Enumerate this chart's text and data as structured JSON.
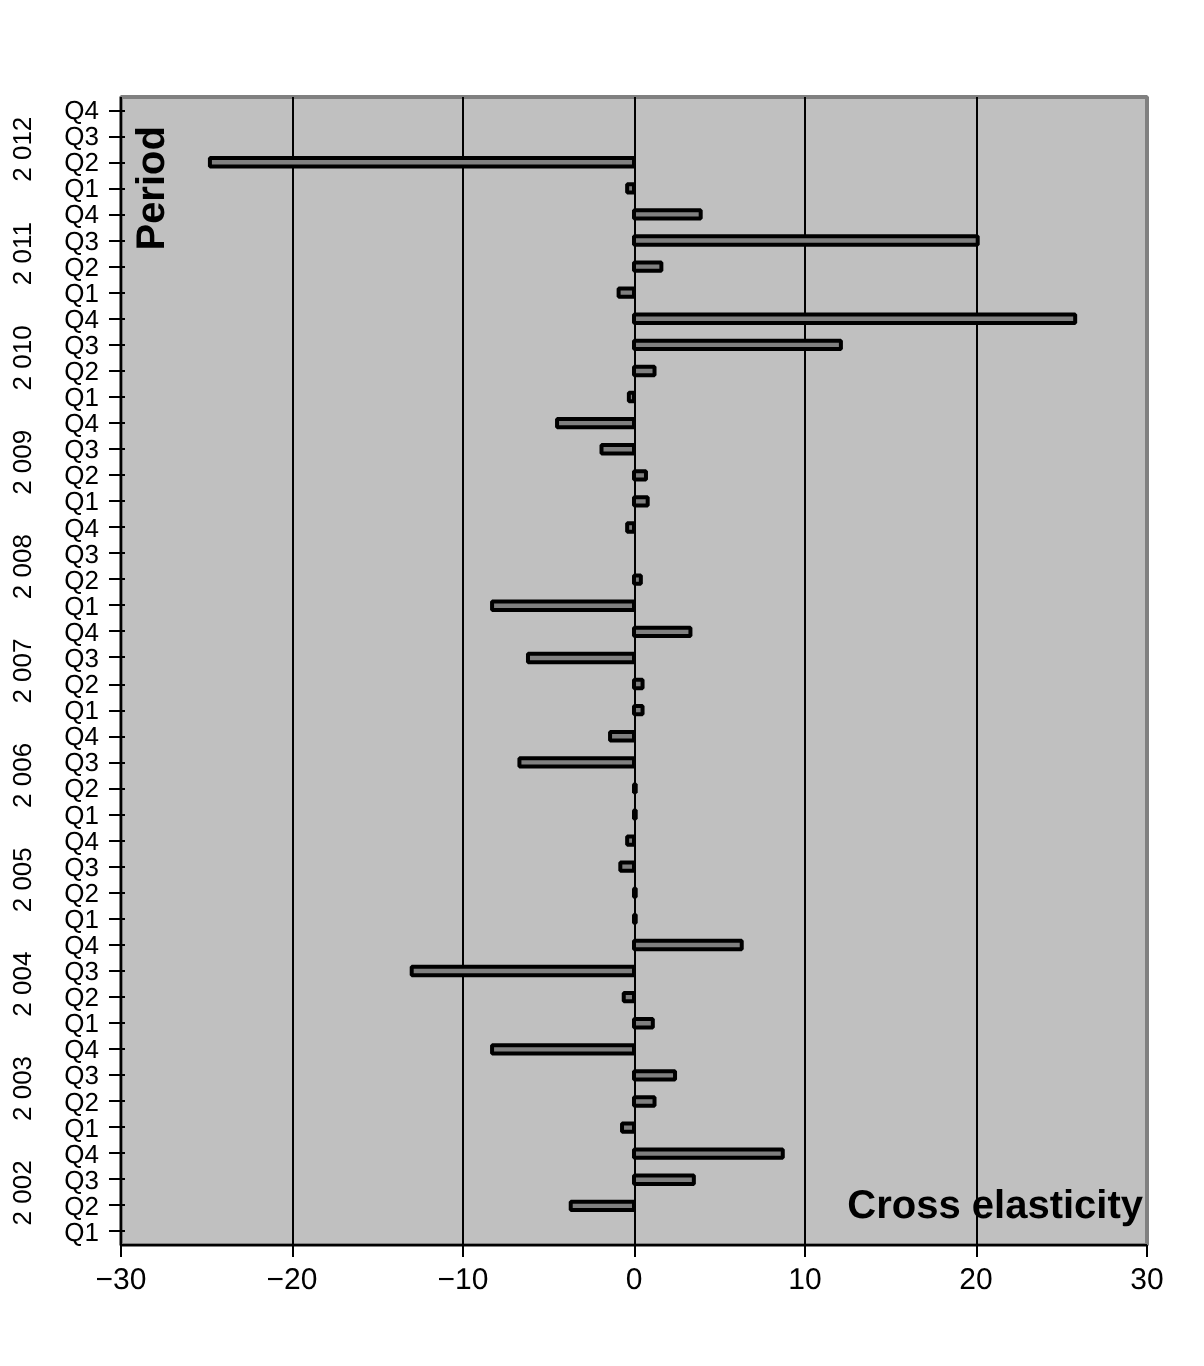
{
  "chart_data": {
    "type": "bar",
    "orientation": "horizontal",
    "xlabel": "Cross elasticity",
    "ylabel": "Period",
    "categories": [
      "Q4",
      "Q3",
      "Q2",
      "Q1",
      "Q4",
      "Q3",
      "Q2",
      "Q1",
      "Q4",
      "Q3",
      "Q2",
      "Q1",
      "Q4",
      "Q3",
      "Q2",
      "Q1",
      "Q4",
      "Q3",
      "Q2",
      "Q1",
      "Q4",
      "Q3",
      "Q2",
      "Q1",
      "Q4",
      "Q3",
      "Q2",
      "Q1",
      "Q4",
      "Q3",
      "Q2",
      "Q1",
      "Q4",
      "Q3",
      "Q2",
      "Q1",
      "Q4",
      "Q3",
      "Q2",
      "Q1",
      "Q4",
      "Q3",
      "Q2",
      "Q1"
    ],
    "values": [
      null,
      null,
      -24.8,
      -0.4,
      3.9,
      20.1,
      1.6,
      -0.9,
      25.8,
      12.1,
      1.2,
      -0.3,
      -4.5,
      -1.9,
      0.7,
      0.8,
      -0.4,
      null,
      0.4,
      -8.3,
      3.3,
      -6.2,
      0.5,
      0.5,
      -1.4,
      -6.7,
      0.1,
      0.1,
      -0.4,
      -0.8,
      0.1,
      0.1,
      6.3,
      -13.0,
      -0.6,
      1.1,
      -8.3,
      2.4,
      1.2,
      -0.7,
      8.7,
      3.5,
      -3.7,
      null
    ],
    "color": "#808080",
    "annotations": [
      "2 012",
      "2 011",
      "2 010",
      "2 009",
      "2 008",
      "2 007",
      "2 006",
      "2 005",
      "2 004",
      "2 003",
      "2 002"
    ],
    "xlim": [
      -30,
      30
    ],
    "xticks": [
      -30,
      -20,
      -10,
      0,
      10,
      20,
      30
    ],
    "grid": "x"
  }
}
